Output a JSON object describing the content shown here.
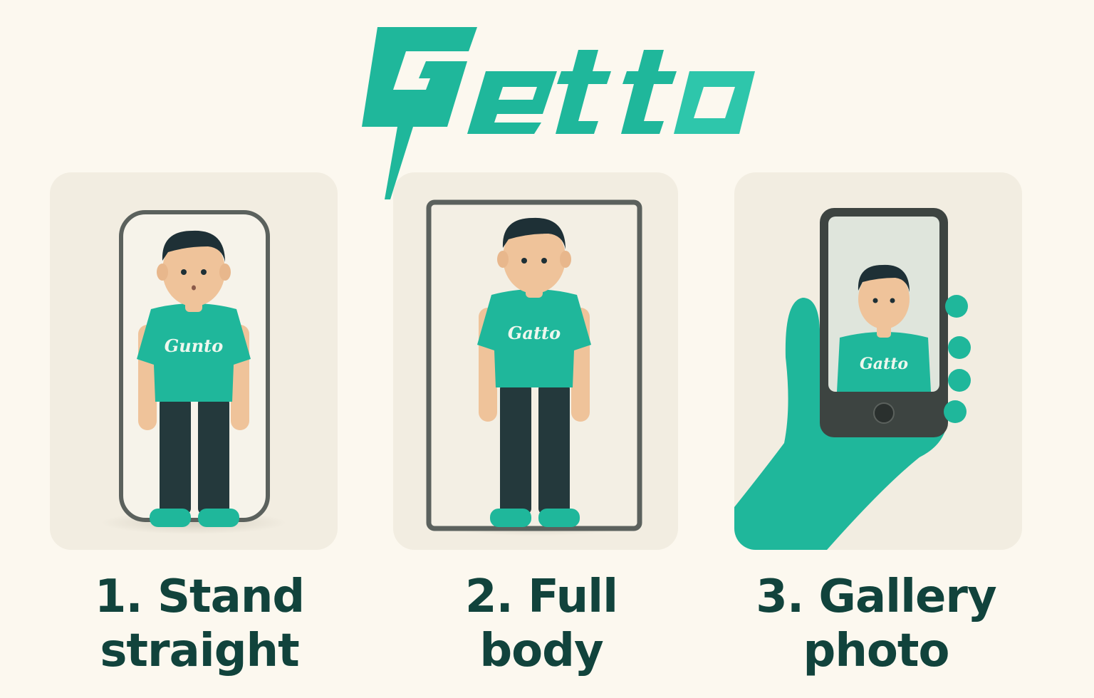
{
  "brand": {
    "logo_text": "Getto",
    "shirt_texts": [
      "Gunto",
      "Gatto",
      "Gatto"
    ],
    "colors": {
      "teal": "#1fb79b",
      "dark_text": "#11433c",
      "background": "#fcf8ef",
      "card": "#f2ede1",
      "frame": "#5b615d",
      "pants": "#24393c",
      "hair": "#1e3036",
      "skin": "#efc39a"
    }
  },
  "steps": [
    {
      "number": "1.",
      "line1": "Stand",
      "line2": "straight",
      "icon": "mirror-frame-icon"
    },
    {
      "number": "2.",
      "line1": "Full",
      "line2": "body",
      "icon": "full-body-frame-icon"
    },
    {
      "number": "3.",
      "line1": "Gallery",
      "line2": "photo",
      "icon": "phone-in-hand-icon"
    }
  ]
}
